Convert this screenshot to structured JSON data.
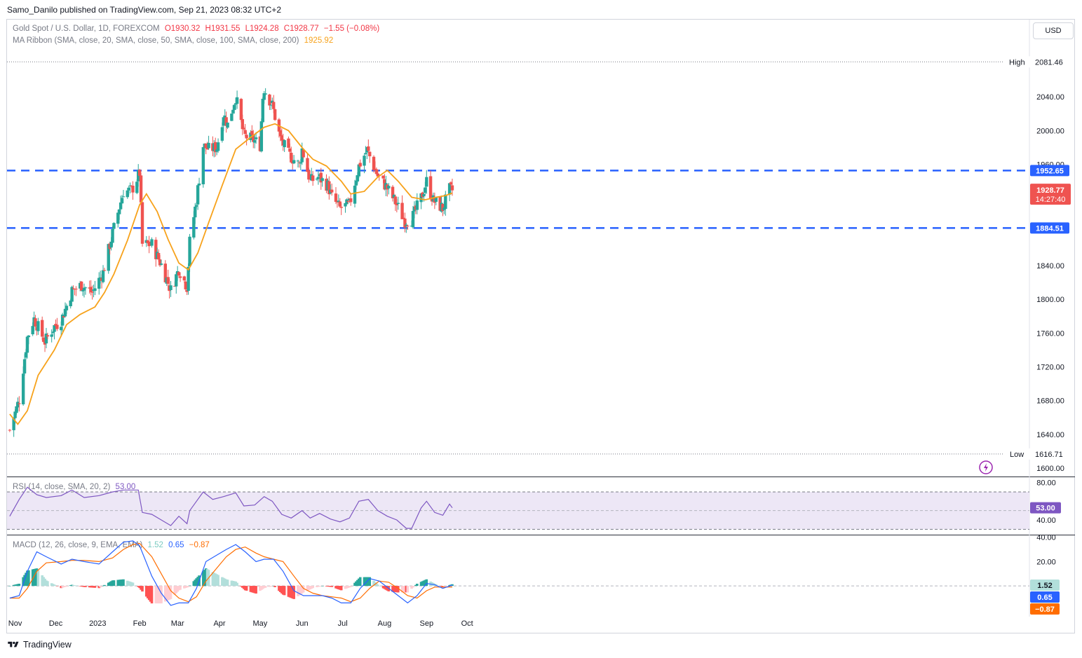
{
  "header": {
    "publisher_line": "Samo_Danilo published on TradingView.com, Sep 21, 2023 08:32 UTC+2",
    "currency_button": "USD",
    "footer_brand": "TradingView"
  },
  "legend": {
    "symbol": "Gold Spot / U.S. Dollar, 1D, FOREXCOM",
    "open": "O1930.32",
    "high": "H1931.55",
    "low": "L1924.28",
    "close": "C1928.77",
    "change": "−1.55 (−0.08%)",
    "ma_ribbon_label": "MA Ribbon (SMA, close, 20, SMA, close, 50, SMA, close, 100, SMA, close, 200)",
    "ma_ribbon_value": "1925.92",
    "rsi_label": "RSI (14, close, SMA, 20, 2)",
    "rsi_value": "53.00",
    "macd_label": "MACD (12, 26, close, 9, EMA, EMA)",
    "macd_hist": "1.52",
    "macd_line": "0.65",
    "macd_signal": "−0.87"
  },
  "colors": {
    "up": "#26a69a",
    "down": "#ef5350",
    "ma": "#f7a21b",
    "level": "#2962ff",
    "rsi": "#7e57c2",
    "rsi_band": "#ede7f6",
    "macd": "#2962ff",
    "signal": "#ff6d00"
  },
  "chart_data": [
    {
      "type": "candlestick",
      "title": "Gold Spot / U.S. Dollar, 1D, FOREXCOM",
      "ylim": [
        1590,
        2095
      ],
      "y_ticks": [
        "2040.00",
        "2000.00",
        "1960.00",
        "1840.00",
        "1800.00",
        "1760.00",
        "1720.00",
        "1680.00",
        "1640.00",
        "1600.00"
      ],
      "x_ticks": [
        "Nov",
        "Dec",
        "2023",
        "Feb",
        "Mar",
        "Apr",
        "May",
        "Jun",
        "Jul",
        "Aug",
        "Sep",
        "Oct"
      ],
      "high_label": "High",
      "high_value": "2081.46",
      "low_label": "Low",
      "low_value": "1616.71",
      "horizontal_levels": [
        "1952.65",
        "1884.51"
      ],
      "last_price": "1928.77",
      "countdown": "14:27:40",
      "close_path": [
        [
          "2022-10-28",
          1645
        ],
        [
          "2022-11-04",
          1681
        ],
        [
          "2022-11-10",
          1755
        ],
        [
          "2022-11-15",
          1777
        ],
        [
          "2022-11-23",
          1750
        ],
        [
          "2022-11-30",
          1768
        ],
        [
          "2022-12-05",
          1775
        ],
        [
          "2022-12-13",
          1810
        ],
        [
          "2022-12-20",
          1817
        ],
        [
          "2022-12-28",
          1808
        ],
        [
          "2023-01-05",
          1832
        ],
        [
          "2023-01-12",
          1878
        ],
        [
          "2023-01-20",
          1928
        ],
        [
          "2023-01-26",
          1929
        ],
        [
          "2023-02-01",
          1950
        ],
        [
          "2023-02-03",
          1865
        ],
        [
          "2023-02-10",
          1865
        ],
        [
          "2023-02-17",
          1841
        ],
        [
          "2023-02-24",
          1811
        ],
        [
          "2023-03-02",
          1836
        ],
        [
          "2023-03-08",
          1815
        ],
        [
          "2023-03-10",
          1868
        ],
        [
          "2023-03-15",
          1918
        ],
        [
          "2023-03-20",
          1982
        ],
        [
          "2023-03-24",
          1978
        ],
        [
          "2023-03-30",
          1980
        ],
        [
          "2023-04-04",
          2020
        ],
        [
          "2023-04-07",
          2007
        ],
        [
          "2023-04-13",
          2040
        ],
        [
          "2023-04-19",
          1994
        ],
        [
          "2023-04-26",
          1989
        ],
        [
          "2023-05-01",
          1983
        ],
        [
          "2023-05-03",
          2040
        ],
        [
          "2023-05-04",
          2050
        ],
        [
          "2023-05-10",
          2030
        ],
        [
          "2023-05-16",
          1990
        ],
        [
          "2023-05-22",
          1972
        ],
        [
          "2023-05-30",
          1959
        ],
        [
          "2023-06-01",
          1978
        ],
        [
          "2023-06-07",
          1940
        ],
        [
          "2023-06-13",
          1945
        ],
        [
          "2023-06-20",
          1935
        ],
        [
          "2023-06-23",
          1921
        ],
        [
          "2023-06-29",
          1908
        ],
        [
          "2023-07-06",
          1912
        ],
        [
          "2023-07-13",
          1958
        ],
        [
          "2023-07-19",
          1977
        ],
        [
          "2023-07-27",
          1946
        ],
        [
          "2023-08-02",
          1934
        ],
        [
          "2023-08-09",
          1915
        ],
        [
          "2023-08-16",
          1893
        ],
        [
          "2023-08-21",
          1895
        ],
        [
          "2023-08-28",
          1920
        ],
        [
          "2023-09-01",
          1940
        ],
        [
          "2023-09-06",
          1917
        ],
        [
          "2023-09-13",
          1908
        ],
        [
          "2023-09-18",
          1930
        ],
        [
          "2023-09-20",
          1929
        ]
      ],
      "ma20_path": [
        [
          "2022-10-28",
          1664
        ],
        [
          "2022-11-03",
          1652
        ],
        [
          "2022-11-10",
          1668
        ],
        [
          "2022-11-18",
          1710
        ],
        [
          "2022-11-30",
          1740
        ],
        [
          "2022-12-09",
          1770
        ],
        [
          "2022-12-19",
          1782
        ],
        [
          "2022-12-30",
          1791
        ],
        [
          "2023-01-06",
          1808
        ],
        [
          "2023-01-13",
          1830
        ],
        [
          "2023-01-23",
          1870
        ],
        [
          "2023-02-01",
          1912
        ],
        [
          "2023-02-06",
          1925
        ],
        [
          "2023-02-14",
          1904
        ],
        [
          "2023-02-22",
          1871
        ],
        [
          "2023-03-02",
          1843
        ],
        [
          "2023-03-09",
          1835
        ],
        [
          "2023-03-16",
          1855
        ],
        [
          "2023-03-24",
          1891
        ],
        [
          "2023-04-03",
          1935
        ],
        [
          "2023-04-13",
          1978
        ],
        [
          "2023-04-24",
          1992
        ],
        [
          "2023-05-04",
          2004
        ],
        [
          "2023-05-12",
          2008
        ],
        [
          "2023-05-22",
          2000
        ],
        [
          "2023-06-01",
          1980
        ],
        [
          "2023-06-09",
          1966
        ],
        [
          "2023-06-19",
          1958
        ],
        [
          "2023-06-30",
          1940
        ],
        [
          "2023-07-07",
          1925
        ],
        [
          "2023-07-17",
          1928
        ],
        [
          "2023-07-27",
          1945
        ],
        [
          "2023-08-03",
          1953
        ],
        [
          "2023-08-11",
          1940
        ],
        [
          "2023-08-21",
          1921
        ],
        [
          "2023-08-31",
          1918
        ],
        [
          "2023-09-08",
          1921
        ],
        [
          "2023-09-15",
          1923
        ],
        [
          "2023-09-20",
          1926
        ]
      ]
    },
    {
      "type": "line",
      "title": "RSI (14, close, SMA, 20, 2)",
      "ylim": [
        25,
        85
      ],
      "band": [
        30,
        70
      ],
      "y_ticks": [
        "80.00",
        "40.00"
      ],
      "last_value": "53.00",
      "path": [
        [
          "2022-10-28",
          44
        ],
        [
          "2022-11-04",
          62
        ],
        [
          "2022-11-10",
          75
        ],
        [
          "2022-11-17",
          67
        ],
        [
          "2022-11-24",
          64
        ],
        [
          "2022-12-05",
          66
        ],
        [
          "2022-12-13",
          72
        ],
        [
          "2022-12-22",
          64
        ],
        [
          "2023-01-02",
          66
        ],
        [
          "2023-01-12",
          70
        ],
        [
          "2023-01-20",
          72
        ],
        [
          "2023-01-31",
          72
        ],
        [
          "2023-02-03",
          48
        ],
        [
          "2023-02-10",
          46
        ],
        [
          "2023-02-17",
          40
        ],
        [
          "2023-02-24",
          34
        ],
        [
          "2023-03-02",
          44
        ],
        [
          "2023-03-08",
          36
        ],
        [
          "2023-03-10",
          50
        ],
        [
          "2023-03-15",
          60
        ],
        [
          "2023-03-20",
          70
        ],
        [
          "2023-03-27",
          62
        ],
        [
          "2023-04-04",
          65
        ],
        [
          "2023-04-13",
          69
        ],
        [
          "2023-04-19",
          55
        ],
        [
          "2023-04-27",
          56
        ],
        [
          "2023-05-04",
          65
        ],
        [
          "2023-05-10",
          60
        ],
        [
          "2023-05-17",
          46
        ],
        [
          "2023-05-24",
          42
        ],
        [
          "2023-06-01",
          50
        ],
        [
          "2023-06-07",
          42
        ],
        [
          "2023-06-14",
          47
        ],
        [
          "2023-06-22",
          41
        ],
        [
          "2023-06-29",
          38
        ],
        [
          "2023-07-06",
          42
        ],
        [
          "2023-07-13",
          60
        ],
        [
          "2023-07-20",
          62
        ],
        [
          "2023-07-27",
          50
        ],
        [
          "2023-08-03",
          44
        ],
        [
          "2023-08-10",
          40
        ],
        [
          "2023-08-17",
          31
        ],
        [
          "2023-08-21",
          31
        ],
        [
          "2023-08-28",
          53
        ],
        [
          "2023-09-01",
          60
        ],
        [
          "2023-09-07",
          48
        ],
        [
          "2023-09-13",
          45
        ],
        [
          "2023-09-18",
          57
        ],
        [
          "2023-09-20",
          53
        ]
      ]
    },
    {
      "type": "line",
      "title": "MACD (12, 26, close, 9, EMA, EMA)",
      "ylim": [
        -23,
        41
      ],
      "y_ticks": [
        "40.00",
        "20.00"
      ],
      "last_values": [
        "1.52",
        "0.65",
        "−0.87"
      ],
      "series": [
        {
          "role": "macd",
          "path": [
            [
              "2022-10-28",
              -10
            ],
            [
              "2022-11-04",
              -8
            ],
            [
              "2022-11-10",
              12
            ],
            [
              "2022-11-17",
              28
            ],
            [
              "2022-11-24",
              24
            ],
            [
              "2022-12-05",
              18
            ],
            [
              "2022-12-13",
              22
            ],
            [
              "2022-12-22",
              20
            ],
            [
              "2023-01-02",
              18
            ],
            [
              "2023-01-12",
              28
            ],
            [
              "2023-01-20",
              36
            ],
            [
              "2023-01-27",
              37
            ],
            [
              "2023-02-01",
              33
            ],
            [
              "2023-02-10",
              8
            ],
            [
              "2023-02-17",
              -6
            ],
            [
              "2023-02-24",
              -16
            ],
            [
              "2023-03-02",
              -14
            ],
            [
              "2023-03-09",
              -14
            ],
            [
              "2023-03-15",
              -2
            ],
            [
              "2023-03-22",
              20
            ],
            [
              "2023-03-31",
              26
            ],
            [
              "2023-04-06",
              30
            ],
            [
              "2023-04-13",
              34
            ],
            [
              "2023-04-20",
              28
            ],
            [
              "2023-04-28",
              20
            ],
            [
              "2023-05-04",
              22
            ],
            [
              "2023-05-11",
              22
            ],
            [
              "2023-05-18",
              12
            ],
            [
              "2023-05-26",
              -4
            ],
            [
              "2023-06-02",
              -8
            ],
            [
              "2023-06-09",
              -8
            ],
            [
              "2023-06-16",
              -8
            ],
            [
              "2023-06-23",
              -10
            ],
            [
              "2023-06-30",
              -14
            ],
            [
              "2023-07-07",
              -14
            ],
            [
              "2023-07-14",
              -2
            ],
            [
              "2023-07-21",
              6
            ],
            [
              "2023-07-28",
              4
            ],
            [
              "2023-08-04",
              -2
            ],
            [
              "2023-08-11",
              -8
            ],
            [
              "2023-08-18",
              -14
            ],
            [
              "2023-08-25",
              -8
            ],
            [
              "2023-09-01",
              2
            ],
            [
              "2023-09-07",
              1
            ],
            [
              "2023-09-13",
              -2
            ],
            [
              "2023-09-20",
              0.65
            ]
          ]
        },
        {
          "role": "signal",
          "path": [
            [
              "2022-10-28",
              -10
            ],
            [
              "2022-11-04",
              -10
            ],
            [
              "2022-11-10",
              -2
            ],
            [
              "2022-11-17",
              12
            ],
            [
              "2022-11-24",
              19
            ],
            [
              "2022-12-05",
              20
            ],
            [
              "2022-12-13",
              21
            ],
            [
              "2022-12-22",
              21
            ],
            [
              "2023-01-02",
              20
            ],
            [
              "2023-01-12",
              23
            ],
            [
              "2023-01-20",
              30
            ],
            [
              "2023-01-27",
              34
            ],
            [
              "2023-02-01",
              35
            ],
            [
              "2023-02-10",
              24
            ],
            [
              "2023-02-17",
              10
            ],
            [
              "2023-02-24",
              -4
            ],
            [
              "2023-03-02",
              -10
            ],
            [
              "2023-03-09",
              -13
            ],
            [
              "2023-03-15",
              -9
            ],
            [
              "2023-03-22",
              4
            ],
            [
              "2023-03-31",
              16
            ],
            [
              "2023-04-06",
              24
            ],
            [
              "2023-04-13",
              30
            ],
            [
              "2023-04-20",
              32
            ],
            [
              "2023-04-28",
              27
            ],
            [
              "2023-05-04",
              24
            ],
            [
              "2023-05-11",
              22
            ],
            [
              "2023-05-18",
              20
            ],
            [
              "2023-05-26",
              8
            ],
            [
              "2023-06-02",
              -2
            ],
            [
              "2023-06-09",
              -6
            ],
            [
              "2023-06-16",
              -8
            ],
            [
              "2023-06-23",
              -9
            ],
            [
              "2023-06-30",
              -10
            ],
            [
              "2023-07-07",
              -13
            ],
            [
              "2023-07-14",
              -10
            ],
            [
              "2023-07-21",
              -2
            ],
            [
              "2023-07-28",
              4
            ],
            [
              "2023-08-04",
              3
            ],
            [
              "2023-08-11",
              -2
            ],
            [
              "2023-08-18",
              -8
            ],
            [
              "2023-08-25",
              -10
            ],
            [
              "2023-09-01",
              -4
            ],
            [
              "2023-09-07",
              -1
            ],
            [
              "2023-09-13",
              -1
            ],
            [
              "2023-09-20",
              -0.87
            ]
          ]
        }
      ]
    }
  ]
}
